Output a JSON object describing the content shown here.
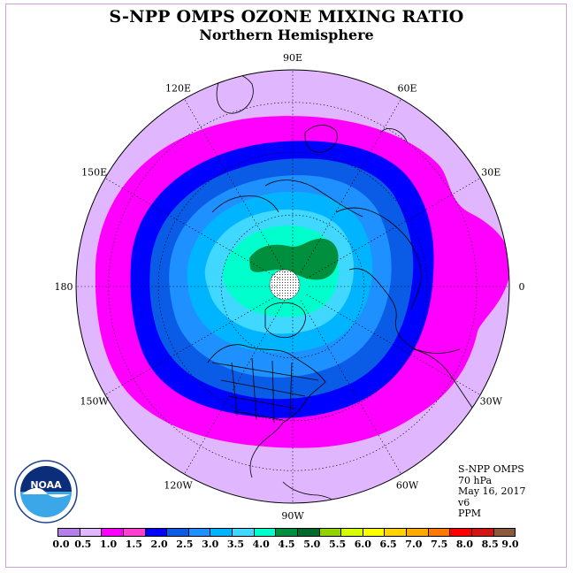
{
  "title": "S-NPP OMPS OZONE MIXING RATIO",
  "subtitle": "Northern Hemisphere",
  "longitude_labels": [
    {
      "text": "90E",
      "deg": 90
    },
    {
      "text": "60E",
      "deg": 60
    },
    {
      "text": "30E",
      "deg": 30
    },
    {
      "text": "0",
      "deg": 0
    },
    {
      "text": "30W",
      "deg": -30
    },
    {
      "text": "60W",
      "deg": -60
    },
    {
      "text": "90W",
      "deg": -90
    },
    {
      "text": "120W",
      "deg": -120
    },
    {
      "text": "150W",
      "deg": -150
    },
    {
      "text": "180",
      "deg": 180
    },
    {
      "text": "150E",
      "deg": 150
    },
    {
      "text": "120E",
      "deg": 120
    }
  ],
  "info": {
    "instrument": "S-NPP OMPS",
    "level": "70 hPa",
    "date": "May 16, 2017",
    "version": "v6",
    "units": "PPM"
  },
  "logo": {
    "text": "NOAA",
    "icon": "noaa-logo"
  },
  "colorbar": {
    "colors": [
      "#b57ee8",
      "#e0b6ff",
      "#ff00ff",
      "#ff3fd0",
      "#0000ff",
      "#0a5ce6",
      "#1e90ff",
      "#00b4ff",
      "#40d8ff",
      "#00ffcc",
      "#008f3c",
      "#006b28",
      "#8fd400",
      "#d6ff00",
      "#ffff00",
      "#ffd200",
      "#ffaa00",
      "#ff7800",
      "#ff0000",
      "#d21414",
      "#8b5a3c"
    ],
    "ticks": [
      "0.0",
      "0.5",
      "1.0",
      "1.5",
      "2.0",
      "2.5",
      "3.0",
      "3.5",
      "4.0",
      "4.5",
      "5.0",
      "5.5",
      "6.0",
      "6.5",
      "7.0",
      "7.5",
      "8.0",
      "8.5",
      "9.0"
    ]
  },
  "chart_data": {
    "type": "heatmap",
    "title": "S-NPP OMPS OZONE MIXING RATIO",
    "subtitle": "Northern Hemisphere",
    "level": "70 hPa",
    "units": "PPM",
    "colorbar_range": [
      0.0,
      9.0
    ],
    "colorbar_step": 0.5,
    "field_bands_ppm": [
      {
        "range": [
          0.5,
          1.0
        ],
        "color": "#e0b6ff",
        "region": "outer ring (tropics)"
      },
      {
        "range": [
          1.0,
          1.5
        ],
        "color": "#ff00ff",
        "region": "subtropics"
      },
      {
        "range": [
          1.5,
          2.0
        ],
        "color": "#0000ff",
        "region": "lower midlatitudes"
      },
      {
        "range": [
          2.0,
          2.5
        ],
        "color": "#0a5ce6",
        "region": "midlatitudes"
      },
      {
        "range": [
          2.5,
          3.0
        ],
        "color": "#1e90ff",
        "region": "midlatitudes"
      },
      {
        "range": [
          3.0,
          3.5
        ],
        "color": "#00b4ff",
        "region": "high latitudes"
      },
      {
        "range": [
          3.5,
          4.0
        ],
        "color": "#40d8ff",
        "region": "high latitudes"
      },
      {
        "range": [
          4.0,
          4.5
        ],
        "color": "#00ffcc",
        "region": "polar"
      },
      {
        "range": [
          4.5,
          5.0
        ],
        "color": "#008f3c",
        "region": "near pole"
      }
    ]
  }
}
